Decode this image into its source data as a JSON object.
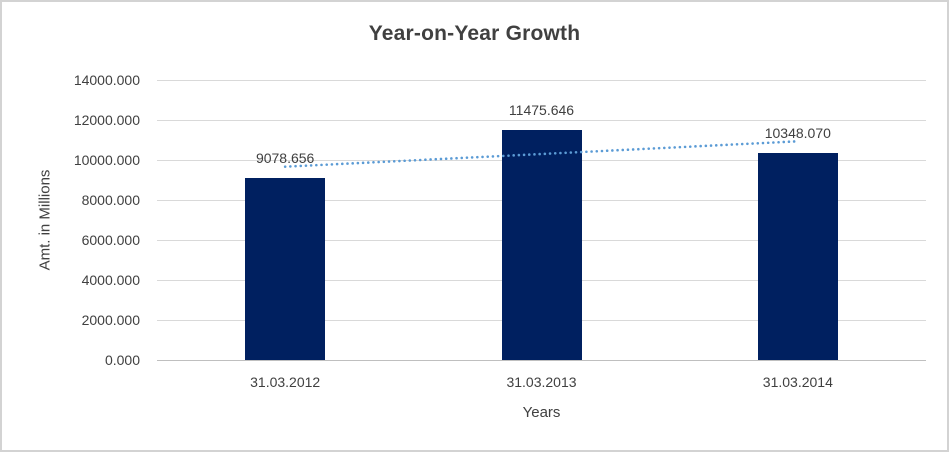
{
  "chart_data": {
    "type": "bar",
    "title": "Year-on-Year Growth",
    "categories": [
      "31.03.2012",
      "31.03.2013",
      "31.03.2014"
    ],
    "values": [
      9078.656,
      11475.646,
      10348.07
    ],
    "value_labels": [
      "9078.656",
      "11475.646",
      "10348.070"
    ],
    "xlabel": "Years",
    "ylabel": "Amt. in Millions",
    "ylim": [
      0,
      14000
    ],
    "ytick_step": 2000,
    "ytick_labels": [
      "0.000",
      "2000.000",
      "4000.000",
      "6000.000",
      "8000.000",
      "10000.000",
      "12000.000",
      "14000.000"
    ],
    "grid": true,
    "legend": false,
    "trendline": {
      "type": "linear",
      "style": "dotted",
      "start_value": 9666.1,
      "end_value": 10935.5
    }
  },
  "colors": {
    "bar": "#002060",
    "trendline": "#5B9BD5",
    "gridline": "#D9D9D9",
    "axis_line": "#BFBFBF",
    "text": "#404040",
    "title_text": "#404040",
    "background": "#FFFFFF",
    "canvas_border": "#D3D3D3"
  }
}
